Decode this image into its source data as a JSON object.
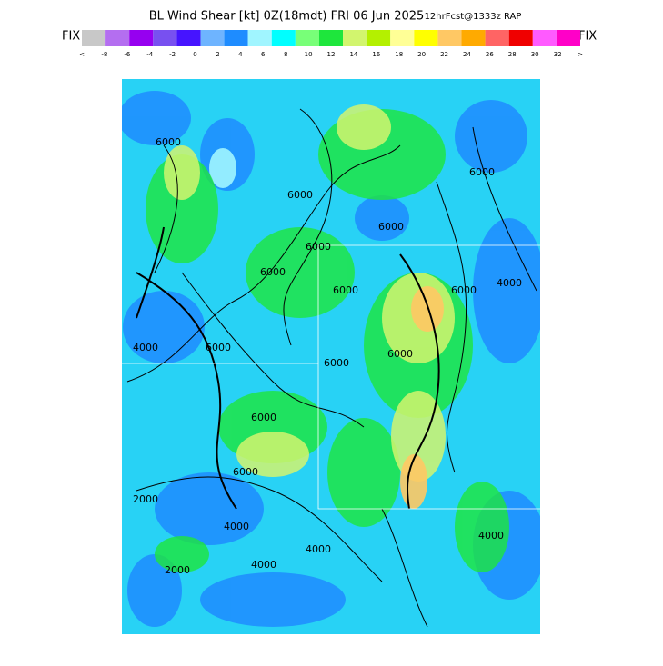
{
  "header": {
    "title": "BL Wind Shear [kt] 0Z(18mdt) FRI 06 Jun 2025",
    "subtitle": "12hrFcst@1333z RAP"
  },
  "colorbar": {
    "left_label": "FIX",
    "right_label": "FIX",
    "colors": [
      "#c8c8c8",
      "#b46ef0",
      "#9600f0",
      "#7850f0",
      "#4614ff",
      "#6eb4ff",
      "#1e8cff",
      "#a0f5ff",
      "#00ffff",
      "#78ff78",
      "#1ee63c",
      "#d2f56e",
      "#b4f000",
      "#ffff96",
      "#ffff00",
      "#ffc864",
      "#ffaa00",
      "#ff6464",
      "#f00000",
      "#ff5aff",
      "#ff00c8"
    ],
    "labels": [
      "<",
      -8,
      -6,
      -4,
      -2,
      0,
      2,
      4,
      6,
      8,
      10,
      12,
      14,
      16,
      18,
      20,
      22,
      24,
      26,
      28,
      30,
      32,
      ">"
    ]
  },
  "map": {
    "contour_labels": [
      "6000",
      "6000",
      "6000",
      "6000",
      "6000",
      "6000",
      "4000",
      "6000",
      "6000",
      "6000",
      "6000",
      "6000",
      "6000",
      "4000",
      "6000",
      "2000",
      "4000",
      "4000",
      "4000",
      "2000",
      "4000"
    ]
  }
}
